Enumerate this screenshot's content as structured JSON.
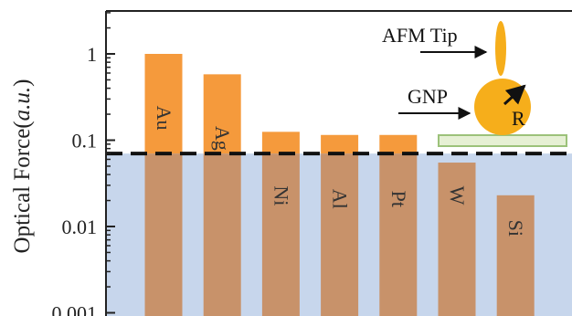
{
  "chart_data": {
    "type": "bar",
    "scale": "log",
    "categories": [
      "Au",
      "Ag",
      "Ni",
      "Al",
      "Pt",
      "W",
      "Si"
    ],
    "values": [
      1.0,
      0.58,
      0.125,
      0.115,
      0.115,
      0.055,
      0.023
    ],
    "ylabel": "Optical Force(a.u.)",
    "ylabel_parts": [
      "Optical Force(",
      "a.u.",
      ")"
    ],
    "ylim": [
      0.001,
      3
    ],
    "yticks": [
      1,
      0.1,
      0.01,
      0.001
    ],
    "ytick_labels": [
      "1",
      "0.1",
      "0.01",
      "0.001"
    ],
    "threshold": 0.07,
    "threshold_style": "dashed",
    "grid": false,
    "colors": {
      "bar_above": "#F59A3C",
      "bar_below": "#C8926A",
      "region_below": "#C7D6EC",
      "threshold_line": "#111111",
      "gnp": "#F6AE1B",
      "substrate": "#E6F0D4",
      "substrate_border": "#9CC27A"
    },
    "inset": {
      "afm_label": "AFM Tip",
      "gnp_label": "GNP",
      "radius_label": "R"
    }
  }
}
